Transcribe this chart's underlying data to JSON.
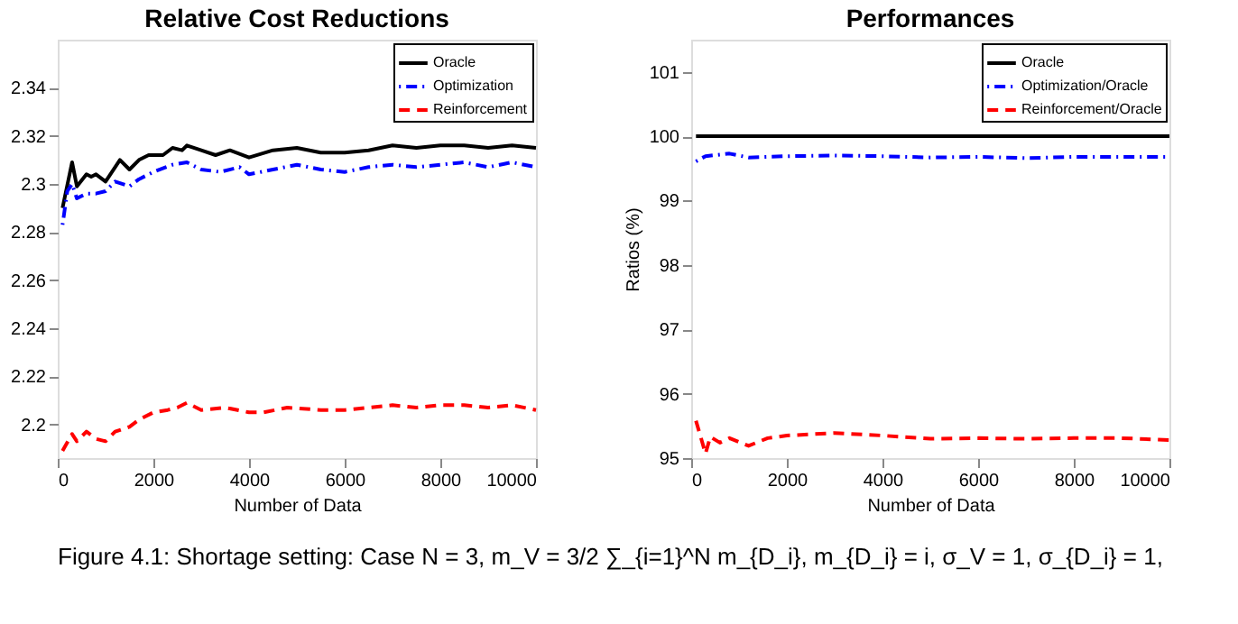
{
  "chart_data": [
    {
      "type": "line",
      "title": "Relative Cost Reductions",
      "xlabel": "Number of Data",
      "xlim": [
        0,
        10000
      ],
      "xticks": [
        0,
        2000,
        4000,
        6000,
        8000,
        10000
      ],
      "ylim": [
        2.186,
        2.36
      ],
      "yticks": [
        2.2,
        2.22,
        2.24,
        2.26,
        2.28,
        2.3,
        2.32,
        2.34
      ],
      "legend": "top right",
      "grid": false,
      "marker": "none",
      "annotations": [
        "Figure 4.1: Shortage setting: Case N = 3, m_V = 3/2 ∑_{i=1}^N m_{D_i}, m_{D_i} = i, σ_V = 1, σ_{D_i} = 1,"
      ],
      "series": [
        {
          "name": "Oracle",
          "color": "#000000",
          "line_style": "solid",
          "x": [
            100,
            300,
            400,
            600,
            700,
            800,
            1000,
            1300,
            1500,
            1700,
            1900,
            2200,
            2400,
            2600,
            2700,
            3000,
            3300,
            3600,
            4000,
            4500,
            5000,
            5500,
            6000,
            6500,
            7000,
            7500,
            8000,
            8500,
            9000,
            9500,
            10000
          ],
          "values": [
            2.29,
            2.309,
            2.299,
            2.304,
            2.303,
            2.304,
            2.301,
            2.31,
            2.306,
            2.31,
            2.312,
            2.312,
            2.315,
            2.314,
            2.316,
            2.314,
            2.312,
            2.314,
            2.311,
            2.314,
            2.315,
            2.313,
            2.313,
            2.314,
            2.316,
            2.315,
            2.316,
            2.316,
            2.315,
            2.316,
            2.315
          ]
        },
        {
          "name": "Optimization",
          "color": "#0000ff",
          "line_style": "dashdot",
          "x": [
            100,
            200,
            300,
            400,
            600,
            800,
            1000,
            1200,
            1500,
            1700,
            2000,
            2400,
            2700,
            3000,
            3400,
            3800,
            4000,
            4500,
            5000,
            5500,
            6000,
            6500,
            7000,
            7500,
            8000,
            8500,
            9000,
            9500,
            10000
          ],
          "values": [
            2.283,
            2.297,
            2.3,
            2.294,
            2.296,
            2.296,
            2.297,
            2.301,
            2.299,
            2.302,
            2.305,
            2.308,
            2.309,
            2.306,
            2.305,
            2.307,
            2.304,
            2.306,
            2.308,
            2.306,
            2.305,
            2.307,
            2.308,
            2.307,
            2.308,
            2.309,
            2.307,
            2.309,
            2.307
          ]
        },
        {
          "name": "Reinforcement",
          "color": "#ff0000",
          "line_style": "dashed",
          "x": [
            100,
            300,
            400,
            600,
            800,
            1000,
            1200,
            1500,
            1700,
            2000,
            2300,
            2500,
            2700,
            3000,
            3500,
            4000,
            4300,
            4800,
            5500,
            6000,
            6500,
            7000,
            7500,
            8000,
            8500,
            9000,
            9500,
            10000
          ],
          "values": [
            2.189,
            2.196,
            2.193,
            2.197,
            2.194,
            2.193,
            2.197,
            2.199,
            2.202,
            2.205,
            2.206,
            2.207,
            2.209,
            2.206,
            2.207,
            2.205,
            2.205,
            2.207,
            2.206,
            2.206,
            2.207,
            2.208,
            2.207,
            2.208,
            2.208,
            2.207,
            2.208,
            2.206
          ]
        }
      ]
    },
    {
      "type": "line",
      "title": "Performances",
      "xlabel": "Number of Data",
      "ylabel": "Ratios (%)",
      "xlim": [
        0,
        10000
      ],
      "xticks": [
        0,
        2000,
        4000,
        6000,
        8000,
        10000
      ],
      "ylim": [
        95,
        101.5
      ],
      "yticks": [
        95,
        96,
        97,
        98,
        99,
        100,
        101
      ],
      "legend": "top right",
      "grid": false,
      "marker": "none",
      "series": [
        {
          "name": "Oracle",
          "color": "#000000",
          "line_style": "solid",
          "x": [
            100,
            10000
          ],
          "values": [
            100,
            100
          ]
        },
        {
          "name": "Optimization/Oracle",
          "color": "#0000ff",
          "line_style": "dashdot",
          "x": [
            100,
            300,
            800,
            1200,
            2000,
            3000,
            4000,
            5000,
            6000,
            7000,
            8000,
            9000,
            10000
          ],
          "values": [
            99.61,
            99.69,
            99.73,
            99.67,
            99.69,
            99.7,
            99.69,
            99.67,
            99.68,
            99.66,
            99.68,
            99.68,
            99.68
          ]
        },
        {
          "name": "Reinforcement/Oracle",
          "color": "#ff0000",
          "line_style": "dashed",
          "x": [
            100,
            300,
            400,
            600,
            800,
            1200,
            1600,
            2000,
            3000,
            4000,
            5000,
            6000,
            7000,
            8000,
            9000,
            10000
          ],
          "values": [
            95.58,
            95.07,
            95.33,
            95.24,
            95.31,
            95.19,
            95.31,
            95.35,
            95.39,
            95.35,
            95.3,
            95.31,
            95.3,
            95.31,
            95.31,
            95.28
          ]
        }
      ]
    }
  ]
}
